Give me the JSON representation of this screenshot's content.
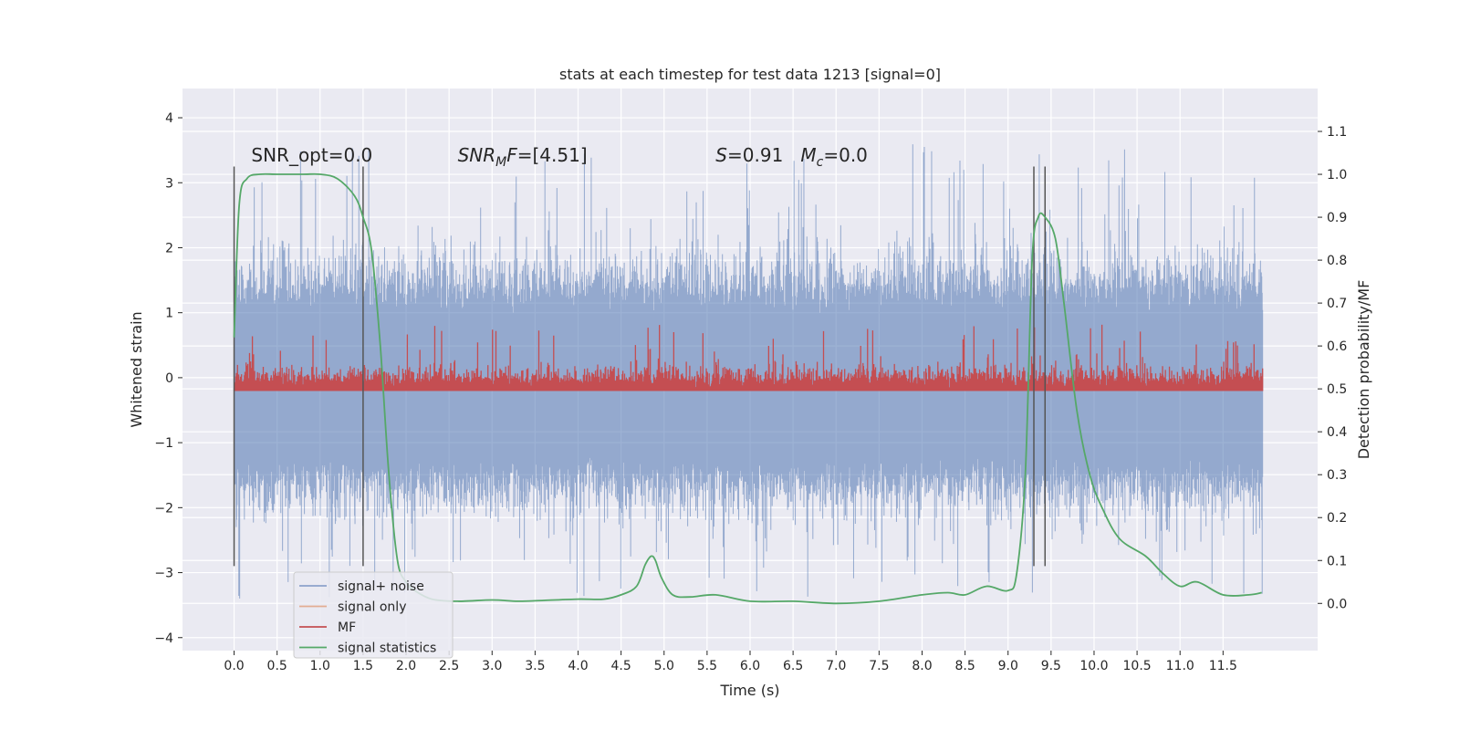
{
  "chart_data": {
    "type": "line",
    "title": "stats at each timestep for test data 1213 [signal=0]",
    "xlabel": "Time (s)",
    "ylabel": "Whitened strain",
    "y2label": "Detection probability/MF",
    "xlim": [
      -0.6,
      12.6
    ],
    "ylim": [
      -4.2,
      4.45
    ],
    "y2lim": [
      -0.11,
      1.2
    ],
    "x_ticks": [
      0.0,
      0.5,
      1.0,
      1.5,
      2.0,
      2.5,
      3.0,
      3.5,
      4.0,
      4.5,
      5.0,
      5.5,
      6.0,
      6.5,
      7.0,
      7.5,
      8.0,
      8.5,
      9.0,
      9.5,
      10.0,
      10.5,
      11.0,
      11.5
    ],
    "x_tick_labels": [
      "0.0",
      "0.5",
      "1.0",
      "1.5",
      "2.0",
      "2.5",
      "3.0",
      "3.5",
      "4.0",
      "4.5",
      "5.0",
      "5.5",
      "6.0",
      "6.5",
      "7.0",
      "7.5",
      "8.0",
      "8.5",
      "9.0",
      "9.5",
      "10.0",
      "10.5",
      "11.0",
      "11.5"
    ],
    "y_ticks": [
      -4,
      -3,
      -2,
      -1,
      0,
      1,
      2,
      3,
      4
    ],
    "y_tick_labels": [
      "−4",
      "−3",
      "−2",
      "−1",
      "0",
      "1",
      "2",
      "3",
      "4"
    ],
    "y2_ticks": [
      0.0,
      0.1,
      0.2,
      0.3,
      0.4,
      0.5,
      0.6,
      0.7,
      0.8,
      0.9,
      1.0,
      1.1
    ],
    "y2_tick_labels": [
      "0.0",
      "0.1",
      "0.2",
      "0.3",
      "0.4",
      "0.5",
      "0.6",
      "0.7",
      "0.8",
      "0.9",
      "1.0",
      "1.1"
    ],
    "grid": true,
    "legend_position": "lower-left",
    "annotations": [
      {
        "text": "SNR_opt=0.0",
        "x": 0.2,
        "y": 3.33
      },
      {
        "text": "SNR_MF=[4.51]",
        "x": 2.6,
        "y": 3.33
      },
      {
        "text": "S=0.91   M_c=0.0",
        "x": 5.6,
        "y": 3.33
      }
    ],
    "vertical_lines": [
      {
        "x": 0.0,
        "y_range": [
          -2.9,
          3.25
        ]
      },
      {
        "x": 1.5,
        "y_range": [
          -2.9,
          3.25
        ]
      },
      {
        "x": 9.3,
        "y_range": [
          -2.9,
          3.25
        ]
      },
      {
        "x": 9.43,
        "y_range": [
          -2.9,
          3.25
        ]
      }
    ],
    "series": [
      {
        "name": "signal+ noise",
        "color": "#4c72b0",
        "style": "noise band",
        "x_range": [
          0.0,
          11.96
        ],
        "typical_range": [
          -1.5,
          1.3
        ],
        "peak_range": [
          -3.75,
          4.1
        ]
      },
      {
        "name": "signal only",
        "color": "#dd8452",
        "values": []
      },
      {
        "name": "MF",
        "color": "#c44e52",
        "axis": "right",
        "x_range": [
          0.0,
          11.96
        ],
        "base": 0.5,
        "typical_range": [
          0.5,
          0.58
        ],
        "max": 0.65
      },
      {
        "name": "signal statistics",
        "color": "#55a868",
        "axis": "right",
        "x": [
          0.0,
          0.06,
          0.15,
          0.3,
          0.5,
          0.8,
          1.0,
          1.2,
          1.4,
          1.5,
          1.6,
          1.7,
          1.8,
          1.9,
          2.0,
          2.1,
          2.3,
          2.6,
          3.0,
          3.3,
          3.6,
          4.0,
          4.3,
          4.5,
          4.68,
          4.78,
          4.85,
          4.9,
          4.97,
          5.1,
          5.3,
          5.6,
          6.0,
          6.5,
          7.0,
          7.5,
          8.0,
          8.3,
          8.5,
          8.75,
          9.0,
          9.1,
          9.2,
          9.28,
          9.35,
          9.43,
          9.55,
          9.65,
          9.8,
          9.95,
          10.1,
          10.3,
          10.6,
          10.8,
          11.0,
          11.2,
          11.5,
          11.8,
          11.95
        ],
        "y": [
          0.62,
          0.93,
          0.99,
          1.0,
          1.0,
          1.0,
          1.0,
          0.99,
          0.95,
          0.9,
          0.82,
          0.6,
          0.3,
          0.1,
          0.05,
          0.03,
          0.01,
          0.005,
          0.008,
          0.005,
          0.007,
          0.01,
          0.01,
          0.02,
          0.04,
          0.09,
          0.11,
          0.1,
          0.06,
          0.02,
          0.015,
          0.02,
          0.005,
          0.005,
          0.0,
          0.005,
          0.02,
          0.025,
          0.02,
          0.04,
          0.03,
          0.07,
          0.3,
          0.8,
          0.9,
          0.9,
          0.85,
          0.7,
          0.45,
          0.3,
          0.22,
          0.15,
          0.11,
          0.07,
          0.04,
          0.05,
          0.02,
          0.02,
          0.025
        ]
      }
    ]
  }
}
